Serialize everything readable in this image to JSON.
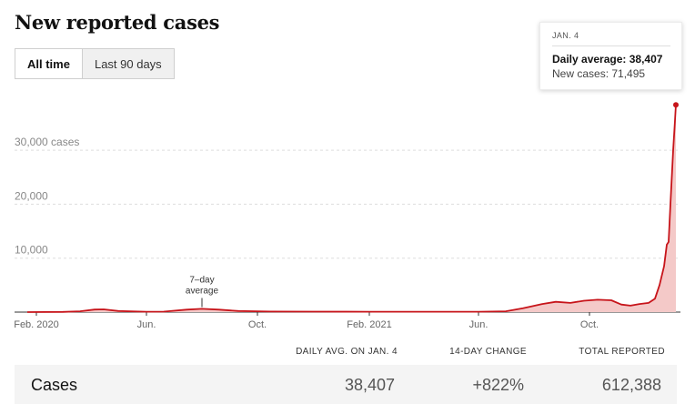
{
  "page": {
    "title": "New reported cases"
  },
  "toggle": {
    "all_time": "All time",
    "last_90": "Last 90 days"
  },
  "tooltip": {
    "date": "JAN. 4",
    "daily_avg": "Daily average: 38,407",
    "new_cases": "New cases: 71,495"
  },
  "annotation": {
    "line1": "7–day",
    "line2": "average"
  },
  "stats": {
    "headers": {
      "daily_avg": "DAILY AVG. ON JAN. 4",
      "change": "14-DAY CHANGE",
      "total": "TOTAL REPORTED"
    },
    "row": {
      "label": "Cases",
      "daily_avg": "38,407",
      "change": "+822%",
      "total": "612,388"
    }
  },
  "colors": {
    "line": "#c7141a",
    "fill": "#f4c9c8"
  },
  "chart_data": {
    "type": "area",
    "title": "New reported cases",
    "y_ticks": [
      10000,
      20000,
      30000
    ],
    "y_tick_labels": [
      "10,000",
      "20,000",
      "30,000 cases"
    ],
    "x_tick_labels": [
      "Feb. 2020",
      "Jun.",
      "Oct.",
      "Feb. 2021",
      "Jun.",
      "Oct."
    ],
    "x_tick_dates": [
      "2020-02-01",
      "2020-06-01",
      "2020-10-01",
      "2021-02-01",
      "2021-06-01",
      "2021-10-01"
    ],
    "grid": true,
    "series": [
      {
        "name": "7–day average",
        "points": [
          [
            "2020-01-22",
            0
          ],
          [
            "2020-03-01",
            30
          ],
          [
            "2020-03-20",
            150
          ],
          [
            "2020-04-05",
            480
          ],
          [
            "2020-04-15",
            500
          ],
          [
            "2020-05-01",
            200
          ],
          [
            "2020-06-01",
            60
          ],
          [
            "2020-06-20",
            80
          ],
          [
            "2020-07-15",
            450
          ],
          [
            "2020-08-01",
            600
          ],
          [
            "2020-08-20",
            450
          ],
          [
            "2020-09-10",
            200
          ],
          [
            "2020-10-15",
            100
          ],
          [
            "2020-12-01",
            80
          ],
          [
            "2021-02-01",
            60
          ],
          [
            "2021-04-01",
            60
          ],
          [
            "2021-06-01",
            60
          ],
          [
            "2021-07-01",
            150
          ],
          [
            "2021-07-20",
            700
          ],
          [
            "2021-08-10",
            1500
          ],
          [
            "2021-08-25",
            1900
          ],
          [
            "2021-09-10",
            1700
          ],
          [
            "2021-09-25",
            2100
          ],
          [
            "2021-10-10",
            2300
          ],
          [
            "2021-10-25",
            2200
          ],
          [
            "2021-11-05",
            1400
          ],
          [
            "2021-11-15",
            1200
          ],
          [
            "2021-11-25",
            1500
          ],
          [
            "2021-12-05",
            1700
          ],
          [
            "2021-12-12",
            2500
          ],
          [
            "2021-12-17",
            5000
          ],
          [
            "2021-12-22",
            8500
          ],
          [
            "2021-12-25",
            12500
          ],
          [
            "2021-12-27",
            13000
          ],
          [
            "2021-12-29",
            20000
          ],
          [
            "2022-01-01",
            30000
          ],
          [
            "2022-01-03",
            35500
          ],
          [
            "2022-01-04",
            38407
          ]
        ]
      }
    ],
    "highlight": {
      "date": "2022-01-04",
      "value": 38407
    },
    "annotation_date": "2020-08-01"
  }
}
